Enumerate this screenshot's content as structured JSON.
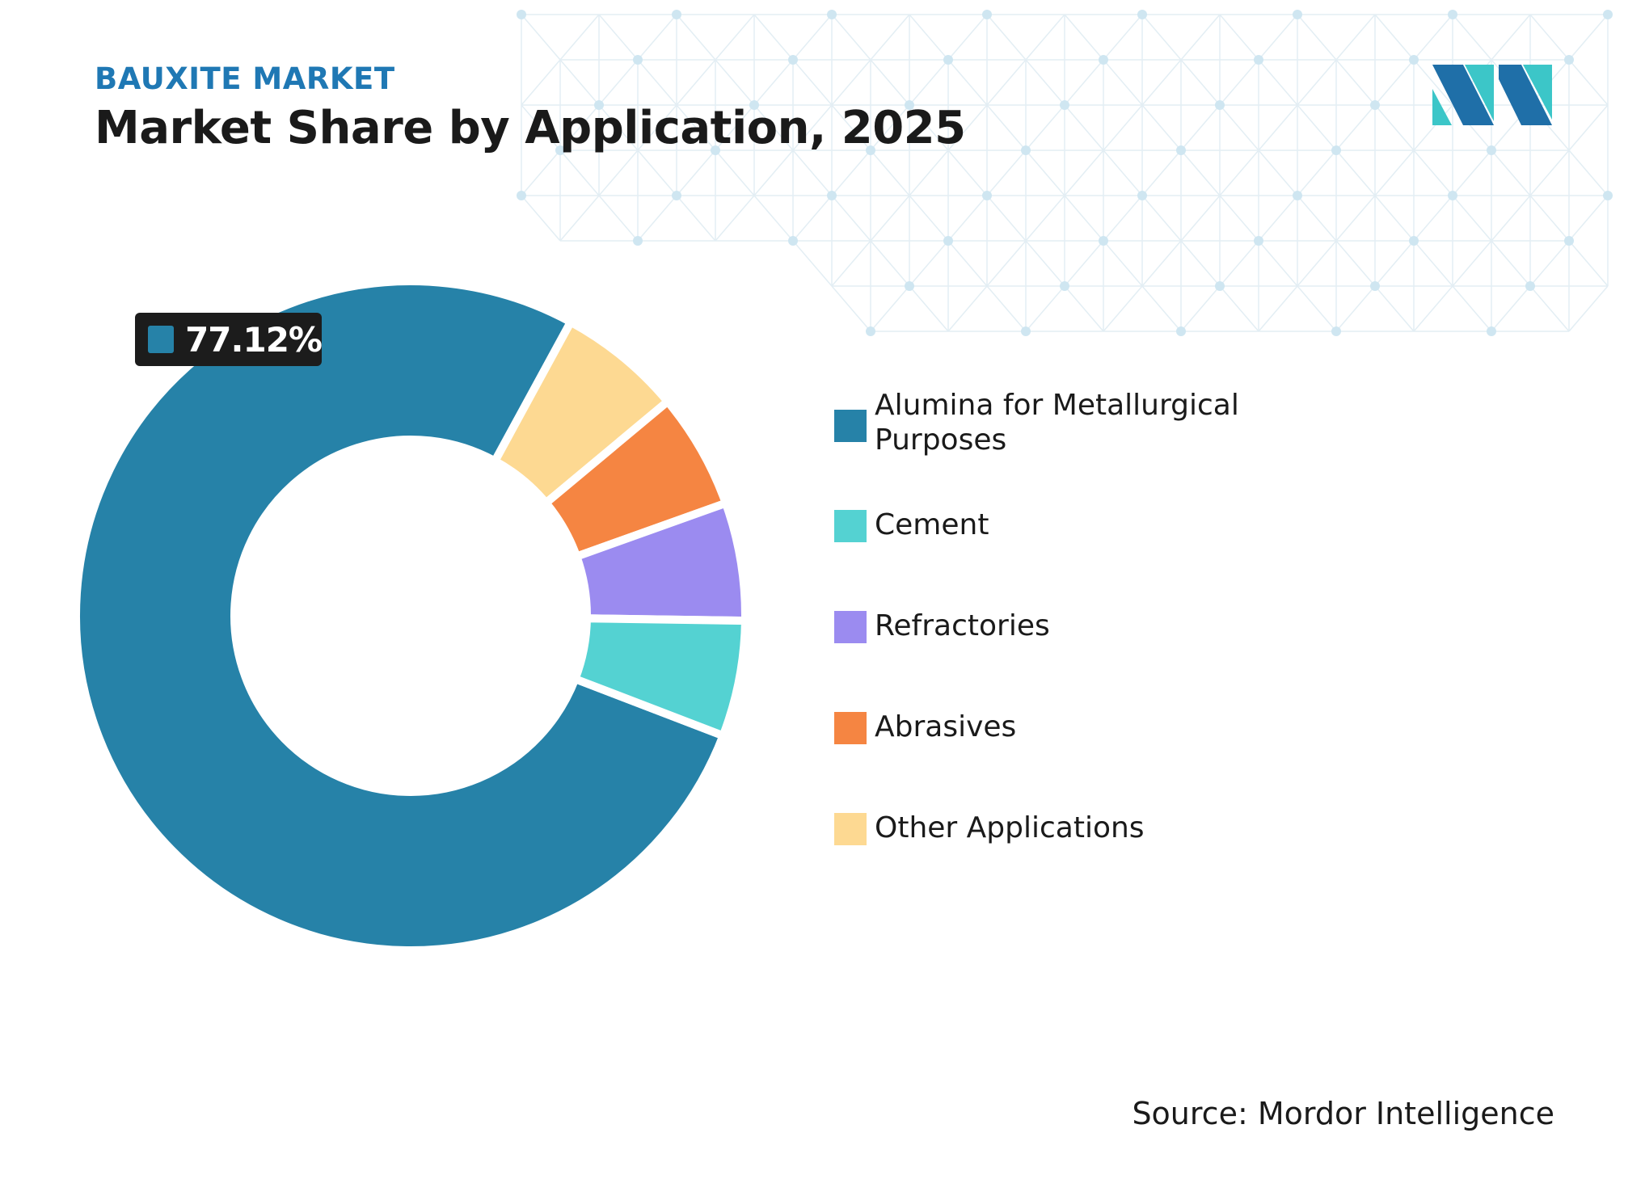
{
  "header": {
    "kicker": "BAUXITE MARKET",
    "title": "Market Share by Application, 2025"
  },
  "callout": {
    "value": "77.12%",
    "color": "#2682a8"
  },
  "chart_data": {
    "type": "pie",
    "variant": "donut",
    "title": "Market Share by Application, 2025",
    "unit": "%",
    "legend_position": "right",
    "categories": [
      "Alumina for Metallurgical Purposes",
      "Cement",
      "Refractories",
      "Abrasives",
      "Other Applications"
    ],
    "values": [
      77.12,
      5.6,
      5.7,
      5.6,
      6.0
    ],
    "colors": [
      "#2682a8",
      "#54d2d2",
      "#9b8bf0",
      "#f58542",
      "#fdd992"
    ],
    "labelled_slice": {
      "category": "Alumina for Metallurgical Purposes",
      "value": 77.12
    }
  },
  "legend": {
    "items": [
      {
        "label": "Alumina for Metallurgical Purposes",
        "color": "#2682a8"
      },
      {
        "label": "Cement",
        "color": "#54d2d2"
      },
      {
        "label": "Refractories",
        "color": "#9b8bf0"
      },
      {
        "label": "Abrasives",
        "color": "#f58542"
      },
      {
        "label": "Other Applications",
        "color": "#fdd992"
      }
    ]
  },
  "footer": {
    "source": "Source: Mordor Intelligence"
  },
  "logo": {
    "icon": "mordor-intelligence-logo-icon",
    "colors": [
      "#1f6fa8",
      "#3cc6c8"
    ]
  }
}
